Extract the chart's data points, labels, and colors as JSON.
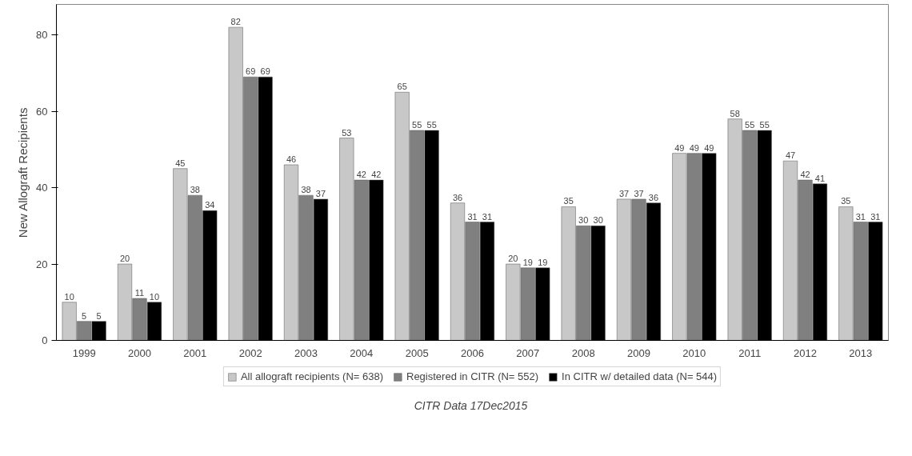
{
  "chart_data": {
    "type": "bar",
    "ylabel": "New Allograft Recipients",
    "categories": [
      "1999",
      "2000",
      "2001",
      "2002",
      "2003",
      "2004",
      "2005",
      "2006",
      "2007",
      "2008",
      "2009",
      "2010",
      "2011",
      "2012",
      "2013"
    ],
    "series": [
      {
        "name": "All allograft recipients (N= 638)",
        "color": "#c8c8c8",
        "values": [
          10,
          20,
          45,
          82,
          46,
          53,
          65,
          36,
          20,
          35,
          37,
          49,
          58,
          47,
          35
        ]
      },
      {
        "name": "Registered in CITR (N= 552)",
        "color": "#808080",
        "values": [
          5,
          11,
          38,
          69,
          38,
          42,
          55,
          31,
          19,
          30,
          37,
          49,
          55,
          42,
          31
        ]
      },
      {
        "name": "In CITR w/ detailed data (N= 544)",
        "color": "#000000",
        "values": [
          5,
          10,
          34,
          69,
          37,
          42,
          55,
          31,
          19,
          30,
          36,
          49,
          55,
          41,
          31
        ]
      }
    ],
    "ylim": [
      0,
      88
    ],
    "yticks": [
      0,
      20,
      40,
      60,
      80
    ],
    "data_labels": true,
    "legend": "bottom",
    "grid": false,
    "annotations": [
      "CITR  Data 17Dec2015"
    ]
  }
}
